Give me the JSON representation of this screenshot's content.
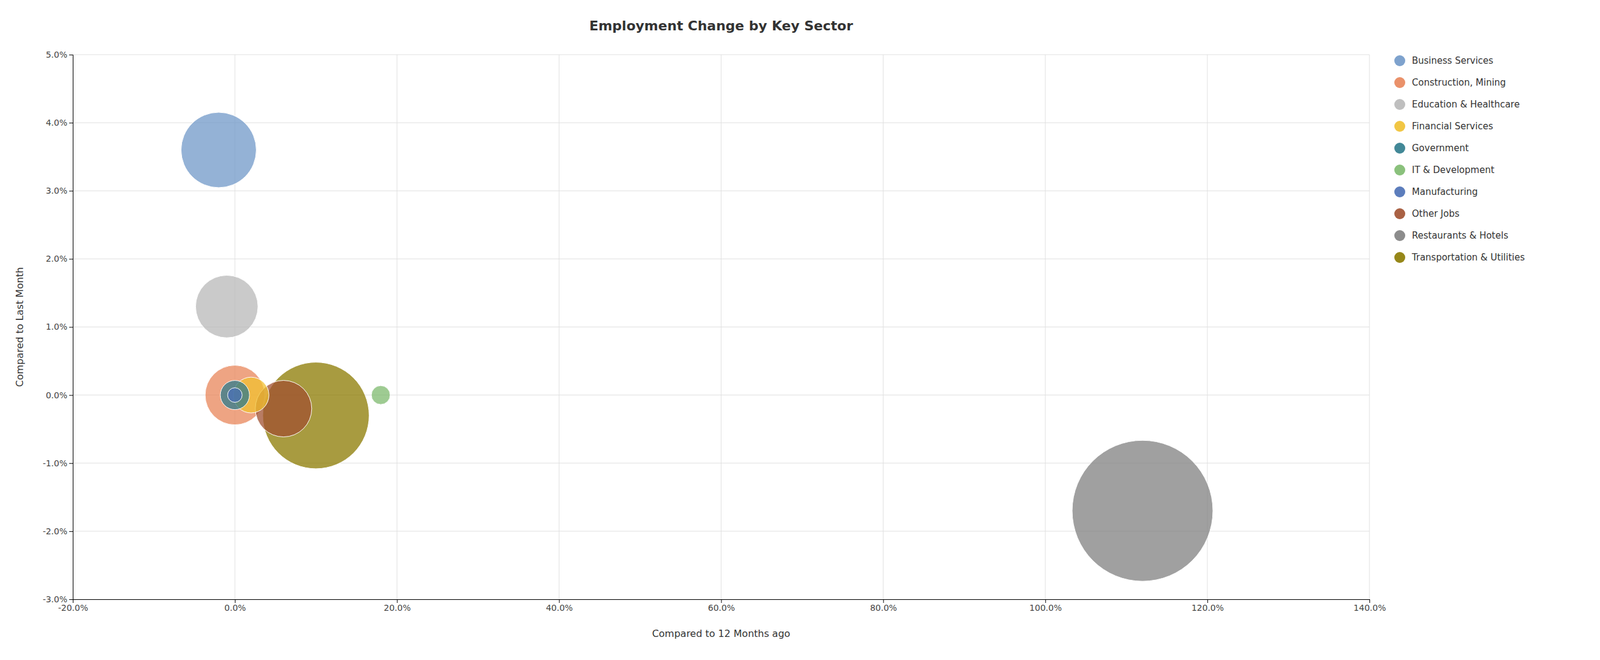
{
  "chart_data": {
    "type": "bubble",
    "title": "Employment Change by Key Sector",
    "x_label": "Compared to 12 Months ago",
    "y_label": "Compared to Last Month",
    "xlim": [
      -0.2,
      1.4
    ],
    "ylim": [
      -0.03,
      0.05
    ],
    "xticks": [
      {
        "value": -0.2,
        "label": "-20.0%"
      },
      {
        "value": 0.0,
        "label": "0.0%"
      },
      {
        "value": 0.2,
        "label": "20.0%"
      },
      {
        "value": 0.4,
        "label": "40.0%"
      },
      {
        "value": 0.6,
        "label": "60.0%"
      },
      {
        "value": 0.8,
        "label": "80.0%"
      },
      {
        "value": 1.0,
        "label": "100.0%"
      },
      {
        "value": 1.2,
        "label": "120.0%"
      },
      {
        "value": 1.4,
        "label": "140.0%"
      }
    ],
    "yticks": [
      {
        "value": -0.03,
        "label": "-3.0%"
      },
      {
        "value": -0.02,
        "label": "-2.0%"
      },
      {
        "value": -0.01,
        "label": "-1.0%"
      },
      {
        "value": 0.0,
        "label": "0.0%"
      },
      {
        "value": 0.01,
        "label": "1.0%"
      },
      {
        "value": 0.02,
        "label": "2.0%"
      },
      {
        "value": 0.03,
        "label": "3.0%"
      },
      {
        "value": 0.04,
        "label": "4.0%"
      },
      {
        "value": 0.05,
        "label": "5.0%"
      }
    ],
    "grid": true,
    "legend": "right",
    "series": [
      {
        "name": "Business Services",
        "color": "#7098c8",
        "x": [
          -0.02
        ],
        "values": [
          0.036
        ],
        "size": [
          8000
        ]
      },
      {
        "name": "Construction, Mining",
        "color": "#e8855a",
        "x": [
          0.0
        ],
        "values": [
          0.0
        ],
        "size": [
          5000
        ]
      },
      {
        "name": "Education & Healthcare",
        "color": "#b8b8b8",
        "x": [
          -0.01
        ],
        "values": [
          0.013
        ],
        "size": [
          5500
        ]
      },
      {
        "name": "Financial Services",
        "color": "#f0c030",
        "x": [
          0.02
        ],
        "values": [
          0.0
        ],
        "size": [
          1800
        ]
      },
      {
        "name": "Government",
        "color": "#2e7b8c",
        "x": [
          0.0
        ],
        "values": [
          0.0
        ],
        "size": [
          1200
        ]
      },
      {
        "name": "IT & Development",
        "color": "#7dba6e",
        "x": [
          0.18
        ],
        "values": [
          0.0
        ],
        "size": [
          500
        ]
      },
      {
        "name": "Manufacturing",
        "color": "#4a6fb5",
        "x": [
          0.0
        ],
        "values": [
          0.0
        ],
        "size": [
          300
        ]
      },
      {
        "name": "Other Jobs",
        "color": "#a05030",
        "x": [
          0.06
        ],
        "values": [
          -0.002
        ],
        "size": [
          4500
        ]
      },
      {
        "name": "Restaurants & Hotels",
        "color": "#808080",
        "x": [
          1.12
        ],
        "values": [
          -0.017
        ],
        "size": [
          28000
        ]
      },
      {
        "name": "Transportation & Utilities",
        "color": "#8b7a00",
        "x": [
          0.1
        ],
        "values": [
          -0.003
        ],
        "size": [
          16000
        ]
      }
    ]
  }
}
